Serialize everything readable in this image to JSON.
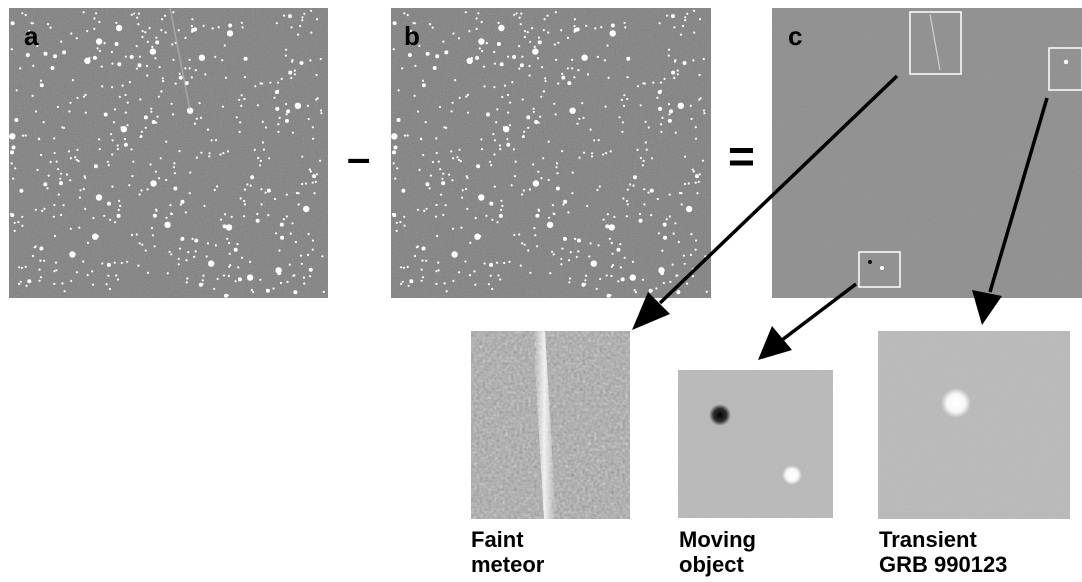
{
  "panels": {
    "a": {
      "label": "a"
    },
    "b": {
      "label": "b"
    },
    "c": {
      "label": "c"
    }
  },
  "operators": {
    "minus": "–",
    "equals": "="
  },
  "insets": {
    "meteor": {
      "line1": "Faint",
      "line2": "meteor"
    },
    "moving": {
      "line1": "Moving",
      "line2": "object"
    },
    "transient": {
      "line1": "Transient",
      "line2": "GRB 990123"
    }
  },
  "colors": {
    "field_bg": "#808080",
    "difference_bg": "#8e8e8e",
    "inset_light_bg": "#b8b8b8",
    "star": "#ffffff",
    "box": "#ffffff",
    "arrow": "#000000"
  }
}
